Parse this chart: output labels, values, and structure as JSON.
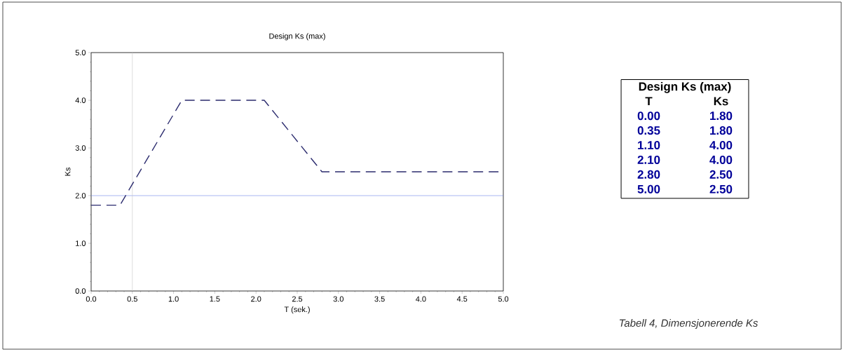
{
  "chart_data": {
    "type": "line",
    "title": "Design Ks (max)",
    "xlabel": "T (sek.)",
    "ylabel": "Ks",
    "x": [
      0.0,
      0.35,
      1.1,
      2.1,
      2.8,
      5.0
    ],
    "series": [
      {
        "color": "#2b2b6e",
        "values": [
          1.8,
          1.8,
          4.0,
          4.0,
          2.5,
          2.5
        ]
      }
    ],
    "xlim": [
      0,
      5
    ],
    "ylim": [
      0,
      5
    ],
    "xticks": [
      {
        "value": 0,
        "label": "0.0"
      },
      {
        "value": 0.5,
        "label": "0.5"
      },
      {
        "value": 1,
        "label": "1.0"
      },
      {
        "value": 1.5,
        "label": "1.5"
      },
      {
        "value": 2,
        "label": "2.0"
      },
      {
        "value": 2.5,
        "label": "2.5"
      },
      {
        "value": 3,
        "label": "3.0"
      },
      {
        "value": 3.5,
        "label": "3.5"
      },
      {
        "value": 4,
        "label": "4.0"
      },
      {
        "value": 4.5,
        "label": "4.5"
      },
      {
        "value": 5,
        "label": "5.0"
      }
    ],
    "yticks": [
      {
        "value": 0,
        "label": "0.0"
      },
      {
        "value": 1,
        "label": "1.0"
      },
      {
        "value": 2,
        "label": "2.0"
      },
      {
        "value": 3,
        "label": "3.0"
      },
      {
        "value": 4,
        "label": "4.0"
      },
      {
        "value": 5,
        "label": "5.0"
      }
    ],
    "ref_lines": [
      {
        "axis": "y",
        "value": 2.0,
        "color": "#6f86e8"
      },
      {
        "axis": "x",
        "value": 0.5,
        "color": "#c4c4c4"
      }
    ],
    "marker": "none",
    "line_style": "dashed",
    "annotations": [
      "Design Ks (max)",
      "T",
      "Ks",
      "0.00",
      "1.80",
      "0.35",
      "1.80",
      "1.10",
      "4.00",
      "2.10",
      "4.00",
      "2.80",
      "2.50",
      "5.00",
      "2.50",
      "Tabell 4, Dimensjonerende Ks"
    ]
  }
}
